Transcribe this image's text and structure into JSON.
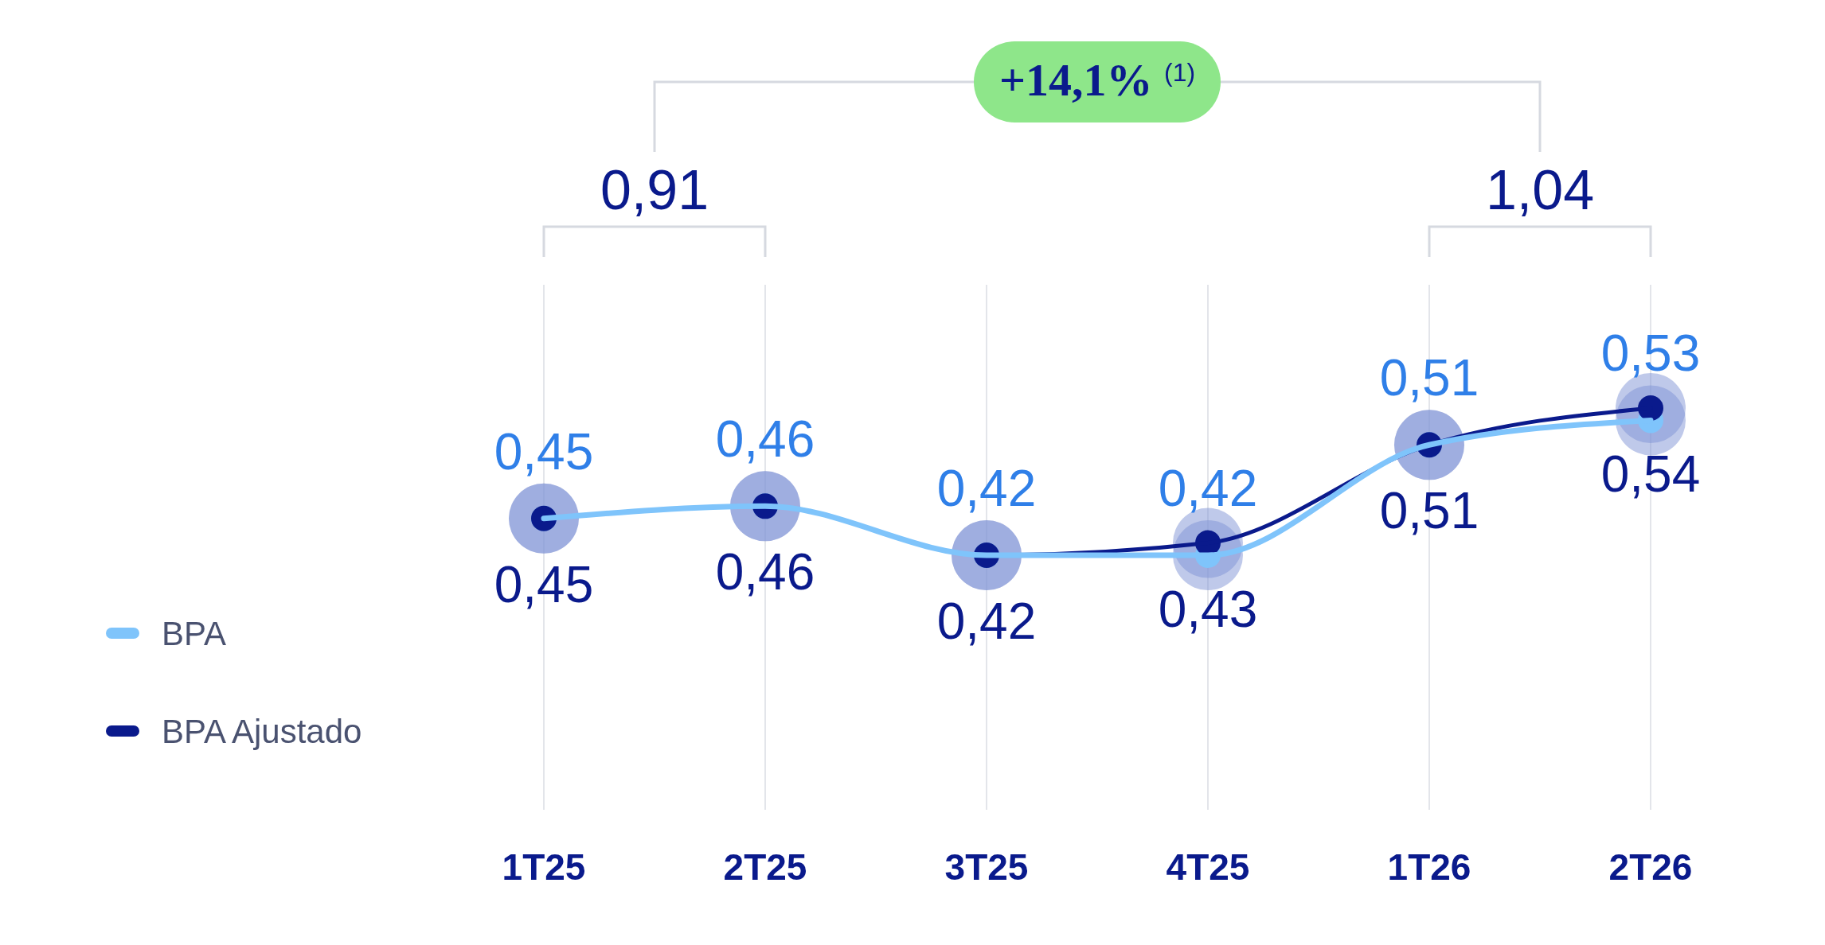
{
  "chart_data": {
    "type": "line",
    "categories": [
      "1T25",
      "2T25",
      "3T25",
      "4T25",
      "1T26",
      "2T26"
    ],
    "series": [
      {
        "name": "BPA",
        "color": "#7fc4fb",
        "values": [
          0.45,
          0.46,
          0.42,
          0.42,
          0.51,
          0.53
        ],
        "value_labels": [
          "0,45",
          "0,46",
          "0,42",
          "0,42",
          "0,51",
          "0,53"
        ]
      },
      {
        "name": "BPA Ajustado",
        "color": "#0a1a8c",
        "values": [
          0.45,
          0.46,
          0.42,
          0.43,
          0.51,
          0.54
        ],
        "value_labels": [
          "0,45",
          "0,46",
          "0,42",
          "0,43",
          "0,51",
          "0,54"
        ]
      }
    ],
    "marker": "circle",
    "line_style": "solid",
    "grid": "x",
    "legend": "left",
    "annotations": [
      "0,91",
      "1,04",
      "+14,1% $^{(1)}$"
    ]
  }
}
